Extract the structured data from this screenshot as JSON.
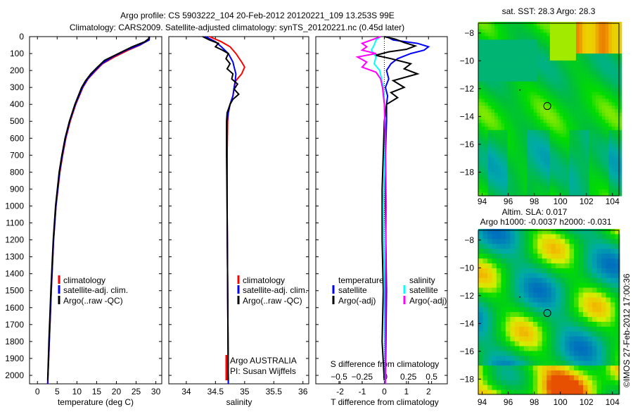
{
  "chart_data": [
    {
      "type": "line",
      "name": "temperature-profile",
      "xlabel": "temperature (deg C)",
      "xlim": [
        -2,
        31.5
      ],
      "ylim": [
        0,
        2050
      ],
      "xticks": [
        0,
        5,
        10,
        15,
        20,
        25,
        30
      ],
      "yticks": [
        0,
        100,
        200,
        300,
        400,
        500,
        600,
        700,
        800,
        900,
        1000,
        1100,
        1200,
        1300,
        1400,
        1500,
        1600,
        1700,
        1800,
        1900,
        2000
      ],
      "legend": [
        "climatology",
        "satellite-adj. clim.",
        "Argo(..raw -QC)"
      ],
      "series": [
        {
          "name": "climatology",
          "color": "#ff0000",
          "depth": [
            0,
            20,
            50,
            80,
            120,
            160,
            200,
            250,
            300,
            400,
            500,
            600,
            700,
            800,
            1000,
            1200,
            1500,
            1800,
            2050
          ],
          "values": [
            28.3,
            28.2,
            26,
            23,
            19.5,
            16.5,
            14.8,
            12.8,
            11.5,
            9.7,
            8.3,
            7.2,
            6.4,
            5.7,
            4.7,
            4.1,
            3.5,
            3.0,
            2.6
          ]
        },
        {
          "name": "satellite-adj. clim.",
          "color": "#0000ff",
          "depth": [
            0,
            20,
            50,
            80,
            120,
            160,
            200,
            250,
            300,
            400,
            500,
            600,
            700,
            800,
            1000,
            1200,
            1500,
            1800,
            2050
          ],
          "values": [
            28.4,
            28.3,
            25.8,
            22.5,
            19,
            16.3,
            14.6,
            12.7,
            11.4,
            9.6,
            8.2,
            7.1,
            6.3,
            5.6,
            4.7,
            4.1,
            3.5,
            3.0,
            2.6
          ]
        },
        {
          "name": "Argo(..raw -QC)",
          "color": "#000000",
          "depth": [
            0,
            10,
            30,
            60,
            100,
            140,
            180,
            220,
            260,
            300,
            400,
            500,
            600,
            700,
            800,
            1000,
            1200,
            1500,
            1800,
            2030
          ],
          "values": [
            28.2,
            28.3,
            27.2,
            24,
            20.5,
            17,
            15.2,
            13.5,
            12.2,
            11.2,
            9.5,
            8.1,
            7.0,
            6.2,
            5.5,
            4.6,
            4.0,
            3.4,
            2.9,
            2.6
          ]
        }
      ]
    },
    {
      "type": "line",
      "name": "salinity-profile",
      "xlabel": "salinity",
      "xlim": [
        33.7,
        36.1
      ],
      "ylim": [
        0,
        2050
      ],
      "xticks": [
        34,
        34.5,
        35,
        35.5,
        36
      ],
      "legend": [
        "climatology",
        "satellite-adj. clim.",
        "Argo(..raw -QC)"
      ],
      "annotation": [
        "Argo AUSTRALIA",
        "PI: Susan Wijffels"
      ],
      "series": [
        {
          "name": "climatology",
          "color": "#ff0000",
          "depth": [
            0,
            30,
            60,
            100,
            150,
            180,
            220,
            260,
            300,
            350,
            400,
            450,
            500,
            700,
            1000,
            1500,
            2050
          ],
          "values": [
            34.4,
            34.6,
            34.75,
            34.85,
            34.95,
            35.0,
            34.95,
            34.85,
            34.82,
            34.8,
            34.75,
            34.72,
            34.71,
            34.7,
            34.7,
            34.71,
            34.72
          ]
        },
        {
          "name": "satellite-adj. clim.",
          "color": "#0000ff",
          "depth": [
            0,
            30,
            60,
            100,
            150,
            180,
            220,
            260,
            300,
            350,
            400,
            450,
            500,
            700,
            1000,
            1500,
            2050
          ],
          "values": [
            34.33,
            34.5,
            34.6,
            34.72,
            34.8,
            34.82,
            34.85,
            34.84,
            34.82,
            34.8,
            34.75,
            34.72,
            34.7,
            34.7,
            34.7,
            34.71,
            34.72
          ]
        },
        {
          "name": "Argo(..raw -QC)",
          "color": "#000000",
          "depth": [
            0,
            20,
            40,
            60,
            80,
            100,
            130,
            160,
            190,
            220,
            250,
            280,
            310,
            340,
            370,
            400,
            450,
            500,
            700,
            1000,
            1500,
            2030
          ],
          "values": [
            34.28,
            34.4,
            34.55,
            34.5,
            34.62,
            34.72,
            34.68,
            34.75,
            34.7,
            34.8,
            34.78,
            34.88,
            34.82,
            34.9,
            34.8,
            34.75,
            34.7,
            34.69,
            34.69,
            34.7,
            34.71,
            34.72
          ]
        }
      ]
    },
    {
      "type": "line",
      "name": "difference-profile",
      "xlabel": "T difference from climatology",
      "x2label": "S difference from climatology",
      "xlim": [
        -3.1,
        2.85
      ],
      "x2lim": [
        -0.75,
        0.67
      ],
      "ylim": [
        0,
        2050
      ],
      "xticks": [
        -2,
        -1,
        0,
        1,
        2
      ],
      "x2ticks": [
        -0.5,
        -0.25,
        0,
        0.25,
        0.5
      ],
      "legend_titles": [
        "temperature",
        "salinity"
      ],
      "legend": [
        "satellite",
        "Argo(-adj)",
        "satellite",
        "Argo(-adj)"
      ],
      "series": [
        {
          "name": "T satellite",
          "axis": "T",
          "color": "#0000ff",
          "depth": [
            0,
            20,
            40,
            60,
            80,
            100,
            130,
            160,
            200,
            250,
            300,
            350,
            400,
            500,
            700,
            1000,
            1500,
            2050
          ],
          "values": [
            0.1,
            0.4,
            1.5,
            2.0,
            1.8,
            1.2,
            0.6,
            0.3,
            0.1,
            0.2,
            0.05,
            0.15,
            0.1,
            0.1,
            0.05,
            0.05,
            0.1,
            0.05
          ]
        },
        {
          "name": "T Argo(-adj)",
          "axis": "T",
          "color": "#000000",
          "depth": [
            0,
            15,
            35,
            55,
            75,
            90,
            110,
            130,
            160,
            190,
            220,
            260,
            300,
            330,
            360,
            400,
            500,
            700,
            900,
            1200,
            1500,
            1800,
            2030
          ],
          "values": [
            0,
            0.5,
            0.9,
            1.4,
            1.0,
            0.2,
            -0.4,
            0.3,
            1.2,
            0.9,
            1.5,
            0.4,
            0.9,
            0.3,
            0.6,
            0.1,
            0,
            -0.05,
            -0.1,
            -0.1,
            -0.05,
            -0.1,
            0
          ]
        },
        {
          "name": "S satellite",
          "axis": "S",
          "color": "#00ffff",
          "depth": [
            0,
            20,
            50,
            80,
            120,
            160,
            200,
            250,
            300,
            400,
            600,
            1000,
            1500,
            2050
          ],
          "values": [
            -0.05,
            -0.1,
            -0.12,
            -0.15,
            -0.1,
            -0.12,
            -0.06,
            -0.04,
            -0.02,
            -0.01,
            0,
            -0.02,
            -0.01,
            0
          ]
        },
        {
          "name": "S Argo(-adj)",
          "axis": "S",
          "color": "#ff00ff",
          "depth": [
            0,
            20,
            40,
            60,
            80,
            100,
            120,
            150,
            180,
            210,
            250,
            300,
            400,
            600,
            1000,
            1500,
            2050
          ],
          "values": [
            -0.05,
            -0.15,
            -0.25,
            -0.2,
            -0.25,
            -0.1,
            -0.3,
            -0.2,
            -0.25,
            -0.1,
            -0.05,
            -0.03,
            -0.01,
            0,
            0.01,
            0,
            0
          ]
        }
      ]
    },
    {
      "type": "heatmap",
      "name": "sst-map",
      "title": "sat. SST: 28.3 Argo: 28.3",
      "xticks": [
        94,
        96,
        98,
        100,
        102,
        104
      ],
      "yticks": [
        -8,
        -10,
        -12,
        -14,
        -16,
        -18
      ],
      "xlim": [
        93.7,
        104.5
      ],
      "ylim": [
        -19.7,
        -7.3
      ],
      "argo_position": [
        99,
        -13.25
      ]
    },
    {
      "type": "heatmap",
      "name": "sla-map",
      "title": "Altim. SLA: 0.017",
      "subtitle": "Argo h1000: -0.0037 h2000: -0.031",
      "xticks": [
        94,
        96,
        98,
        100,
        102,
        104
      ],
      "yticks": [
        -8,
        -10,
        -12,
        -14,
        -16,
        -18
      ],
      "xlim": [
        93.7,
        104.5
      ],
      "ylim": [
        -19.1,
        -7.3
      ],
      "argo_position": [
        99,
        -13.25
      ]
    }
  ],
  "title": "Argo profile: CS 5903222_104 20-Feb-2012 20120221_109 13.253S 99E",
  "subtitle": "Climatology: CARS2009. Satellite-adjusted climatology: synTS_20120221.nc (0.45d later)",
  "credit": "©IMOS 27-Feb-2012 17:00:36"
}
